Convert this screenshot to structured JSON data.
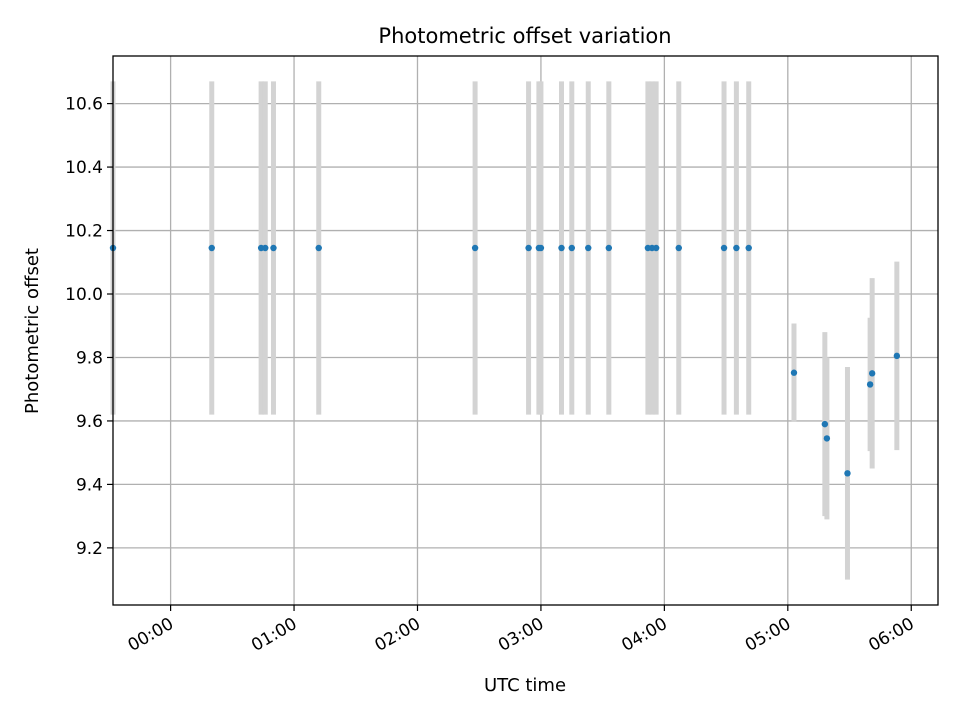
{
  "chart_data": {
    "type": "scatter",
    "title": "Photometric offset variation",
    "xlabel": "UTC time",
    "ylabel": "Photometric offset",
    "xlim": [
      "-00:28",
      "06:13"
    ],
    "ylim": [
      9.02,
      10.75
    ],
    "x_ticks": [
      "00:00",
      "01:00",
      "02:00",
      "03:00",
      "04:00",
      "05:00",
      "06:00"
    ],
    "y_ticks": [
      "9.2",
      "9.4",
      "9.6",
      "9.8",
      "10.0",
      "10.2",
      "10.4",
      "10.6"
    ],
    "grid": true,
    "colors": {
      "marker": "#1f77b4",
      "errorbar": "#d3d3d3",
      "grid": "#b0b0b0",
      "axes": "#000000"
    },
    "series": [
      {
        "points": [
          {
            "x": "-00:28",
            "y": 10.145,
            "yerr": 0.525
          },
          {
            "x": "00:20",
            "y": 10.145,
            "yerr": 0.525
          },
          {
            "x": "00:44",
            "y": 10.145,
            "yerr": 0.525
          },
          {
            "x": "00:46",
            "y": 10.145,
            "yerr": 0.525
          },
          {
            "x": "00:50",
            "y": 10.145,
            "yerr": 0.525
          },
          {
            "x": "01:12",
            "y": 10.145,
            "yerr": 0.525
          },
          {
            "x": "02:28",
            "y": 10.145,
            "yerr": 0.525
          },
          {
            "x": "02:54",
            "y": 10.145,
            "yerr": 0.525
          },
          {
            "x": "02:59",
            "y": 10.145,
            "yerr": 0.525
          },
          {
            "x": "03:00",
            "y": 10.145,
            "yerr": 0.525
          },
          {
            "x": "03:10",
            "y": 10.145,
            "yerr": 0.525
          },
          {
            "x": "03:15",
            "y": 10.145,
            "yerr": 0.525
          },
          {
            "x": "03:23",
            "y": 10.145,
            "yerr": 0.525
          },
          {
            "x": "03:33",
            "y": 10.145,
            "yerr": 0.525
          },
          {
            "x": "03:52",
            "y": 10.145,
            "yerr": 0.525
          },
          {
            "x": "03:54",
            "y": 10.145,
            "yerr": 0.525
          },
          {
            "x": "03:56",
            "y": 10.145,
            "yerr": 0.525
          },
          {
            "x": "04:07",
            "y": 10.145,
            "yerr": 0.525
          },
          {
            "x": "04:29",
            "y": 10.145,
            "yerr": 0.525
          },
          {
            "x": "04:35",
            "y": 10.145,
            "yerr": 0.525
          },
          {
            "x": "04:41",
            "y": 10.145,
            "yerr": 0.525
          },
          {
            "x": "05:03",
            "y": 9.752,
            "yerr": 0.155
          },
          {
            "x": "05:18",
            "y": 9.59,
            "yerr": 0.29
          },
          {
            "x": "05:19",
            "y": 9.545,
            "yerr": 0.255
          },
          {
            "x": "05:29",
            "y": 9.435,
            "yerr": 0.335
          },
          {
            "x": "05:40",
            "y": 9.715,
            "yerr": 0.21
          },
          {
            "x": "05:41",
            "y": 9.75,
            "yerr": 0.3
          },
          {
            "x": "05:53",
            "y": 9.805,
            "yerr": 0.297
          }
        ]
      }
    ]
  }
}
